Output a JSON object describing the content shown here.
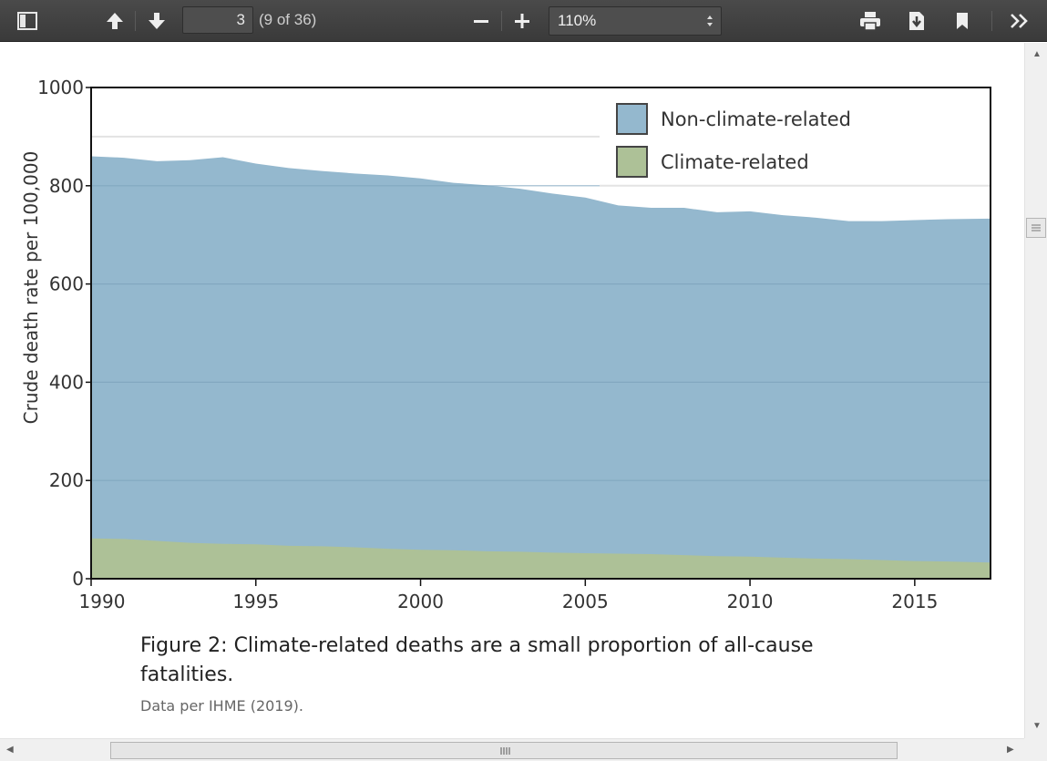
{
  "toolbar": {
    "page_number": "3",
    "page_count": "(9 of 36)",
    "zoom": "110%"
  },
  "colors": {
    "toolbar_bg": "#3f3f3f",
    "non_climate": "#94b8ce",
    "climate": "#adc197"
  },
  "icons": {
    "sidebar": "sidebar-toggle-icon",
    "prev": "arrow-up-icon",
    "next": "arrow-down-icon",
    "zoom_out": "minus-icon",
    "zoom_in": "plus-icon",
    "print": "printer-icon",
    "download": "download-icon",
    "bookmark": "bookmark-icon",
    "tools": "double-chevron-right-icon"
  },
  "document": {
    "caption": "Figure 2: Climate-related deaths are a small proportion of all-cause fatalities.",
    "source": "Data per IHME (2019)."
  },
  "chart_data": {
    "type": "area",
    "stacked": false,
    "ylabel": "Crude death rate per 100,000",
    "xlabel": "",
    "xlim": [
      1990,
      2017.3
    ],
    "ylim": [
      0,
      1000
    ],
    "xticks": [
      "1990",
      "1995",
      "2000",
      "2005",
      "2010",
      "2015"
    ],
    "yticks": [
      "0",
      "200",
      "400",
      "600",
      "800",
      "1000"
    ],
    "grid": "horizontal",
    "legend_position": "top-right",
    "x": [
      1990,
      1991,
      1992,
      1993,
      1994,
      1995,
      1996,
      1997,
      1998,
      1999,
      2000,
      2001,
      2002,
      2003,
      2004,
      2005,
      2006,
      2007,
      2008,
      2009,
      2010,
      2011,
      2012,
      2013,
      2014,
      2015,
      2016,
      2017.3
    ],
    "series": [
      {
        "name": "Non-climate-related",
        "values": [
          860,
          857,
          850,
          852,
          858,
          845,
          836,
          830,
          825,
          821,
          815,
          806,
          801,
          794,
          784,
          776,
          760,
          755,
          755,
          746,
          748,
          740,
          735,
          728,
          728,
          730,
          732,
          733
        ]
      },
      {
        "name": "Climate-related",
        "values": [
          82,
          81,
          77,
          73,
          71,
          70,
          67,
          66,
          64,
          61,
          59,
          58,
          56,
          55,
          53,
          52,
          51,
          50,
          48,
          46,
          45,
          43,
          41,
          40,
          38,
          36,
          35,
          33
        ]
      }
    ]
  }
}
